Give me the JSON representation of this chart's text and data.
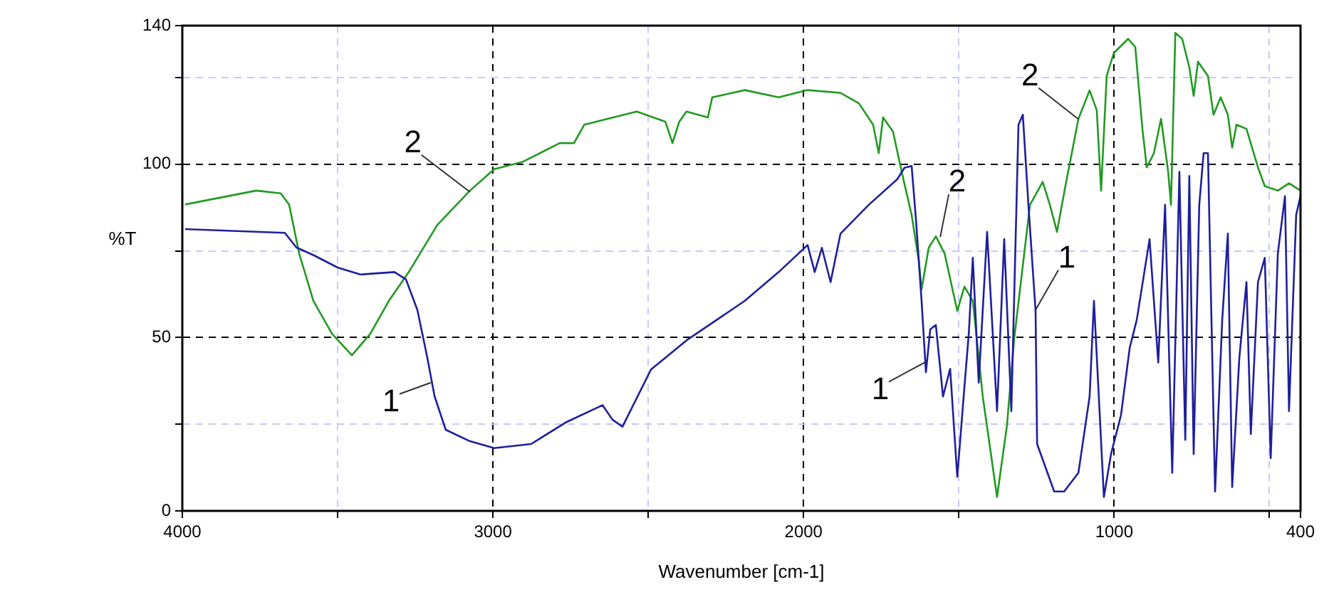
{
  "chart_data": {
    "type": "line",
    "xlabel": "Wavenumber [cm-1]",
    "ylabel": "%T",
    "xlim": [
      4000,
      400
    ],
    "xticks": [
      4000,
      {
        "value": 3500,
        "label": null
      },
      3000,
      {
        "value": 2500,
        "label": null
      },
      2000,
      {
        "value": 1500,
        "label": null
      },
      1000,
      {
        "value": 500,
        "label": null
      },
      400
    ],
    "ylim": [
      0,
      140
    ],
    "yticks": [
      0,
      {
        "value": 25,
        "label": null
      },
      50,
      {
        "value": 75,
        "label": null
      },
      100,
      {
        "value": 125,
        "label": null
      },
      140
    ],
    "grid": true,
    "legend": false,
    "marker": "none",
    "line_style": "solid",
    "series": [
      {
        "color": "#1f1f9c",
        "x": [
          3991,
          3670,
          3633,
          3578,
          3500,
          3427,
          3317,
          3280,
          3243,
          3211,
          3188,
          3152,
          3074,
          2996,
          2877,
          2766,
          2647,
          2615,
          2583,
          2491,
          2372,
          2189,
          2080,
          1987,
          1964,
          1941,
          1913,
          1881,
          1790,
          1698,
          1675,
          1652,
          1638,
          1620,
          1606,
          1592,
          1574,
          1551,
          1528,
          1505,
          1482,
          1468,
          1455,
          1436,
          1409,
          1377,
          1354,
          1331,
          1308,
          1294,
          1276,
          1253,
          1248,
          1193,
          1161,
          1115,
          1079,
          1065,
          1047,
          1033,
          1010,
          978,
          950,
          927,
          886,
          858,
          836,
          813,
          790,
          771,
          758,
          744,
          726,
          712,
          698,
          675,
          652,
          634,
          620,
          597,
          574,
          560,
          537,
          515,
          496,
          473,
          450,
          437,
          414,
          400
        ],
        "values": [
          81.3,
          80.2,
          76,
          73.8,
          70.2,
          68.2,
          68.9,
          66.8,
          57.9,
          44.1,
          33.1,
          23.4,
          20.1,
          18.1,
          19.3,
          25.5,
          30.5,
          26.3,
          24.3,
          40.8,
          49.5,
          60.6,
          68.9,
          76.7,
          68.9,
          75.9,
          66,
          80,
          88.3,
          95.7,
          99,
          99.5,
          84,
          60.6,
          40,
          52.4,
          53.6,
          33,
          41,
          9.8,
          35.8,
          51.1,
          73,
          37,
          80.5,
          28.8,
          78.4,
          28.8,
          111.4,
          114.3,
          88.3,
          57.7,
          19.3,
          5.6,
          5.6,
          11,
          33,
          60.6,
          28.8,
          4,
          16.4,
          27.6,
          47,
          55.2,
          78.4,
          42.8,
          88.3,
          11,
          97.8,
          20.5,
          96.6,
          16.4,
          88.3,
          103.2,
          103.2,
          5.6,
          55.2,
          80,
          6.9,
          44.1,
          66,
          22.2,
          66,
          73,
          15.2,
          74.3,
          90.8,
          28.8,
          85.4,
          90.8
        ]
      },
      {
        "color": "#229922",
        "x": [
          3991,
          3762,
          3683,
          3656,
          3624,
          3578,
          3518,
          3454,
          3395,
          3335,
          3271,
          3179,
          3074,
          2996,
          2904,
          2785,
          2739,
          2706,
          2537,
          2445,
          2422,
          2400,
          2377,
          2308,
          2294,
          2189,
          2080,
          1987,
          1881,
          1822,
          1776,
          1758,
          1744,
          1712,
          1684,
          1652,
          1629,
          1620,
          1597,
          1574,
          1546,
          1505,
          1482,
          1455,
          1423,
          1377,
          1345,
          1322,
          1271,
          1230,
          1207,
          1184,
          1157,
          1115,
          1079,
          1056,
          1042,
          1024,
          1001,
          955,
          932,
          909,
          895,
          872,
          849,
          826,
          817,
          803,
          781,
          758,
          744,
          730,
          698,
          680,
          657,
          634,
          620,
          606,
          574,
          537,
          515,
          473,
          437,
          400
        ],
        "values": [
          88.4,
          92.4,
          91.6,
          88.3,
          74.3,
          60.6,
          51.1,
          44.9,
          51.1,
          60.6,
          68.9,
          82.5,
          92.4,
          98.6,
          100.7,
          106.1,
          106.1,
          111.4,
          115.2,
          112.3,
          106.1,
          112.3,
          115.2,
          113.5,
          119.3,
          121.4,
          119.3,
          121.4,
          120.6,
          117.6,
          111.4,
          103.2,
          113.5,
          109.4,
          97.8,
          85.4,
          72.2,
          63.9,
          75.9,
          79.2,
          74.3,
          57.7,
          64.7,
          60.6,
          33,
          4,
          24.7,
          49.5,
          88.3,
          94.9,
          88.3,
          80.5,
          93.7,
          113.1,
          121.3,
          115.6,
          92.4,
          125.5,
          132.1,
          136.2,
          133.8,
          110.2,
          99.1,
          103.2,
          113.1,
          97.8,
          88.3,
          137.9,
          136.2,
          128,
          119.7,
          129.6,
          125.5,
          114.3,
          119.3,
          114.3,
          104.8,
          111.4,
          110.2,
          99.1,
          93.7,
          92.4,
          94.5,
          92.4
        ]
      }
    ],
    "annotations": [
      {
        "text": "1",
        "x": 3200,
        "y": 37
      },
      {
        "text": "2",
        "x": 3074,
        "y": 92
      },
      {
        "text": "1",
        "x": 1606,
        "y": 43
      },
      {
        "text": "2",
        "x": 1560,
        "y": 79
      },
      {
        "text": "1",
        "x": 1253,
        "y": 58
      },
      {
        "text": "2",
        "x": 1115,
        "y": 113
      }
    ]
  }
}
